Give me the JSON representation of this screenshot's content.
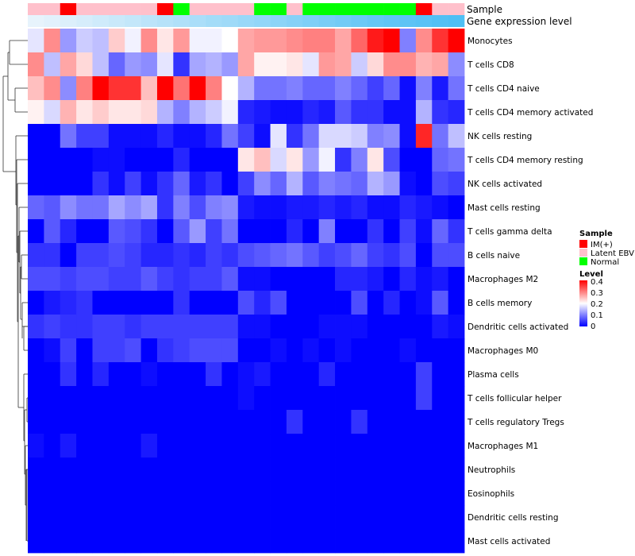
{
  "chart_data": {
    "type": "heatmap",
    "annotation_labels": [
      "Sample",
      "Gene expression level"
    ],
    "sample_groups": [
      "Latent EBV",
      "Latent EBV",
      "IM(+)",
      "Latent EBV",
      "Latent EBV",
      "Latent EBV",
      "Latent EBV",
      "Latent EBV",
      "IM(+)",
      "Normal",
      "Latent EBV",
      "Latent EBV",
      "Latent EBV",
      "Latent EBV",
      "Normal",
      "Normal",
      "Latent EBV",
      "Normal",
      "Normal",
      "Normal",
      "Normal",
      "Normal",
      "Normal",
      "Normal",
      "IM(+)",
      "Latent EBV",
      "Latent EBV"
    ],
    "sample_colors": {
      "IM(+)": "#ff0000",
      "Latent EBV": "#ffc0cb",
      "Normal": "#00ff00"
    },
    "gene_expression_level": [
      0.02,
      0.05,
      0.09,
      0.13,
      0.17,
      0.21,
      0.25,
      0.29,
      0.33,
      0.37,
      0.41,
      0.45,
      0.48,
      0.52,
      0.56,
      0.6,
      0.64,
      0.68,
      0.72,
      0.76,
      0.8,
      0.84,
      0.87,
      0.9,
      0.93,
      0.96,
      0.99
    ],
    "rows": [
      "Monocytes",
      "T cells CD8",
      "T cells CD4 naive",
      "T cells CD4 memory activated",
      "NK cells resting",
      "T cells CD4 memory resting",
      "NK cells activated",
      "Mast cells resting",
      "T cells gamma delta",
      "B cells naive",
      "Macrophages M2",
      "B cells memory",
      "Dendritic cells activated",
      "Macrophages M0",
      "Plasma cells",
      "T cells follicular helper",
      "T cells regulatory  Tregs",
      "Macrophages M1",
      "Neutrophils",
      "Eosinophils",
      "Dendritic cells resting",
      "Mast cells activated"
    ],
    "values": [
      [
        0.18,
        0.29,
        0.12,
        0.16,
        0.15,
        0.24,
        0.19,
        0.29,
        0.22,
        0.28,
        0.19,
        0.19,
        0.2,
        0.27,
        0.28,
        0.28,
        0.29,
        0.3,
        0.3,
        0.27,
        0.32,
        0.38,
        0.4,
        0.1,
        0.29,
        0.36,
        0.4
      ],
      [
        0.29,
        0.15,
        0.27,
        0.23,
        0.15,
        0.08,
        0.12,
        0.11,
        0.18,
        0.04,
        0.13,
        0.14,
        0.12,
        0.27,
        0.21,
        0.21,
        0.22,
        0.18,
        0.28,
        0.27,
        0.16,
        0.23,
        0.29,
        0.29,
        0.26,
        0.27,
        0.11
      ],
      [
        0.25,
        0.29,
        0.11,
        0.3,
        0.4,
        0.36,
        0.36,
        0.25,
        0.4,
        0.31,
        0.4,
        0.3,
        0.2,
        0.14,
        0.09,
        0.09,
        0.1,
        0.08,
        0.08,
        0.1,
        0.08,
        0.05,
        0.08,
        0.01,
        0.1,
        0.02,
        0.09
      ],
      [
        0.21,
        0.17,
        0.26,
        0.22,
        0.24,
        0.22,
        0.22,
        0.23,
        0.14,
        0.1,
        0.14,
        0.16,
        0.19,
        0.03,
        0.02,
        0.01,
        0.01,
        0.03,
        0.02,
        0.07,
        0.04,
        0.04,
        0.01,
        0.01,
        0.14,
        0.04,
        0.03
      ],
      [
        0.0,
        0.0,
        0.09,
        0.05,
        0.05,
        0.01,
        0.01,
        0.01,
        0.03,
        0.01,
        0.01,
        0.03,
        0.09,
        0.05,
        0.01,
        0.18,
        0.04,
        0.09,
        0.17,
        0.17,
        0.16,
        0.1,
        0.11,
        0.01,
        0.37,
        0.09,
        0.15
      ],
      [
        0.0,
        0.0,
        0.0,
        0.0,
        0.01,
        0.01,
        0.0,
        0.0,
        0.0,
        0.03,
        0.0,
        0.0,
        0.0,
        0.22,
        0.25,
        0.17,
        0.22,
        0.12,
        0.19,
        0.04,
        0.1,
        0.22,
        0.06,
        0.0,
        0.0,
        0.08,
        0.09
      ],
      [
        0.0,
        0.0,
        0.0,
        0.0,
        0.04,
        0.01,
        0.05,
        0.01,
        0.04,
        0.08,
        0.02,
        0.04,
        0.0,
        0.05,
        0.11,
        0.08,
        0.14,
        0.07,
        0.1,
        0.09,
        0.08,
        0.14,
        0.12,
        0.01,
        0.0,
        0.06,
        0.05
      ],
      [
        0.08,
        0.07,
        0.11,
        0.09,
        0.09,
        0.13,
        0.11,
        0.13,
        0.04,
        0.1,
        0.06,
        0.1,
        0.11,
        0.02,
        0.01,
        0.01,
        0.02,
        0.02,
        0.03,
        0.02,
        0.03,
        0.01,
        0.01,
        0.03,
        0.02,
        0.01,
        0.0
      ],
      [
        0.0,
        0.07,
        0.03,
        0.0,
        0.0,
        0.07,
        0.06,
        0.04,
        0.0,
        0.07,
        0.12,
        0.05,
        0.09,
        0.0,
        0.0,
        0.0,
        0.03,
        0.0,
        0.1,
        0.0,
        0.0,
        0.04,
        0.0,
        0.05,
        0.01,
        0.08,
        0.04
      ],
      [
        0.04,
        0.04,
        0.0,
        0.05,
        0.05,
        0.06,
        0.05,
        0.03,
        0.03,
        0.04,
        0.03,
        0.05,
        0.04,
        0.06,
        0.07,
        0.08,
        0.09,
        0.07,
        0.05,
        0.06,
        0.08,
        0.05,
        0.04,
        0.06,
        0.0,
        0.06,
        0.06
      ],
      [
        0.06,
        0.06,
        0.05,
        0.06,
        0.06,
        0.05,
        0.05,
        0.07,
        0.05,
        0.04,
        0.05,
        0.05,
        0.07,
        0.01,
        0.01,
        0.0,
        0.0,
        0.0,
        0.0,
        0.03,
        0.03,
        0.02,
        0.0,
        0.03,
        0.01,
        0.02,
        0.0
      ],
      [
        0.0,
        0.02,
        0.03,
        0.04,
        0.0,
        0.0,
        0.0,
        0.0,
        0.0,
        0.04,
        0.0,
        0.0,
        0.0,
        0.06,
        0.03,
        0.06,
        0.0,
        0.0,
        0.0,
        0.0,
        0.06,
        0.0,
        0.03,
        0.0,
        0.01,
        0.07,
        0.0
      ],
      [
        0.04,
        0.05,
        0.04,
        0.04,
        0.05,
        0.05,
        0.04,
        0.05,
        0.05,
        0.05,
        0.05,
        0.05,
        0.05,
        0.01,
        0.01,
        0.0,
        0.0,
        0.0,
        0.01,
        0.01,
        0.01,
        0.0,
        0.0,
        0.0,
        0.0,
        0.02,
        0.01
      ],
      [
        0.0,
        0.01,
        0.05,
        0.0,
        0.05,
        0.05,
        0.06,
        0.0,
        0.04,
        0.05,
        0.06,
        0.06,
        0.06,
        0.0,
        0.0,
        0.01,
        0.0,
        0.01,
        0.0,
        0.01,
        0.0,
        0.0,
        0.0,
        0.01,
        0.0,
        0.0,
        0.0
      ],
      [
        0.0,
        0.0,
        0.04,
        0.0,
        0.03,
        0.0,
        0.0,
        0.01,
        0.0,
        0.0,
        0.0,
        0.04,
        0.0,
        0.01,
        0.02,
        0.0,
        0.0,
        0.0,
        0.03,
        0.0,
        0.0,
        0.0,
        0.0,
        0.0,
        0.05,
        0.0,
        0.0
      ],
      [
        0.0,
        0.0,
        0.0,
        0.0,
        0.0,
        0.0,
        0.0,
        0.0,
        0.0,
        0.0,
        0.0,
        0.0,
        0.0,
        0.01,
        0.0,
        0.0,
        0.0,
        0.0,
        0.0,
        0.0,
        0.0,
        0.0,
        0.0,
        0.0,
        0.05,
        0.0,
        0.0
      ],
      [
        0.0,
        0.0,
        0.0,
        0.0,
        0.0,
        0.0,
        0.0,
        0.0,
        0.0,
        0.0,
        0.0,
        0.0,
        0.0,
        0.0,
        0.0,
        0.0,
        0.04,
        0.0,
        0.0,
        0.0,
        0.04,
        0.0,
        0.0,
        0.0,
        0.0,
        0.0,
        0.0
      ],
      [
        0.01,
        0.0,
        0.02,
        0.0,
        0.0,
        0.0,
        0.0,
        0.02,
        0.0,
        0.0,
        0.0,
        0.0,
        0.0,
        0.0,
        0.0,
        0.0,
        0.0,
        0.0,
        0.0,
        0.0,
        0.0,
        0.0,
        0.0,
        0.0,
        0.0,
        0.0,
        0.0
      ],
      [
        0.0,
        0.0,
        0.0,
        0.0,
        0.0,
        0.0,
        0.0,
        0.0,
        0.0,
        0.0,
        0.0,
        0.0,
        0.0,
        0.0,
        0.0,
        0.0,
        0.0,
        0.0,
        0.0,
        0.0,
        0.0,
        0.0,
        0.0,
        0.0,
        0.0,
        0.0,
        0.0
      ],
      [
        0.0,
        0.0,
        0.0,
        0.0,
        0.0,
        0.0,
        0.0,
        0.0,
        0.0,
        0.0,
        0.0,
        0.0,
        0.0,
        0.0,
        0.0,
        0.0,
        0.0,
        0.0,
        0.0,
        0.0,
        0.0,
        0.0,
        0.0,
        0.0,
        0.0,
        0.0,
        0.0
      ],
      [
        0.0,
        0.0,
        0.0,
        0.0,
        0.0,
        0.0,
        0.0,
        0.0,
        0.0,
        0.0,
        0.0,
        0.0,
        0.0,
        0.0,
        0.0,
        0.0,
        0.0,
        0.0,
        0.0,
        0.0,
        0.0,
        0.0,
        0.0,
        0.0,
        0.0,
        0.0,
        0.0
      ],
      [
        0.0,
        0.0,
        0.0,
        0.0,
        0.0,
        0.0,
        0.0,
        0.0,
        0.0,
        0.0,
        0.0,
        0.0,
        0.0,
        0.0,
        0.0,
        0.0,
        0.0,
        0.0,
        0.0,
        0.0,
        0.0,
        0.0,
        0.0,
        0.0,
        0.0,
        0.0,
        0.0
      ]
    ],
    "color_scale": {
      "min": 0,
      "mid": 0.2,
      "max": 0.4,
      "low": "#0000ff",
      "middle": "#ffffff",
      "high": "#ff0000"
    },
    "legend": {
      "sample_title": "Sample",
      "sample_items": [
        "IM(+)",
        "Latent EBV",
        "Normal"
      ],
      "level_title": "Level",
      "level_ticks": [
        "0.4",
        "0.3",
        "0.2",
        "0.1",
        "0"
      ],
      "placement": "right"
    }
  }
}
